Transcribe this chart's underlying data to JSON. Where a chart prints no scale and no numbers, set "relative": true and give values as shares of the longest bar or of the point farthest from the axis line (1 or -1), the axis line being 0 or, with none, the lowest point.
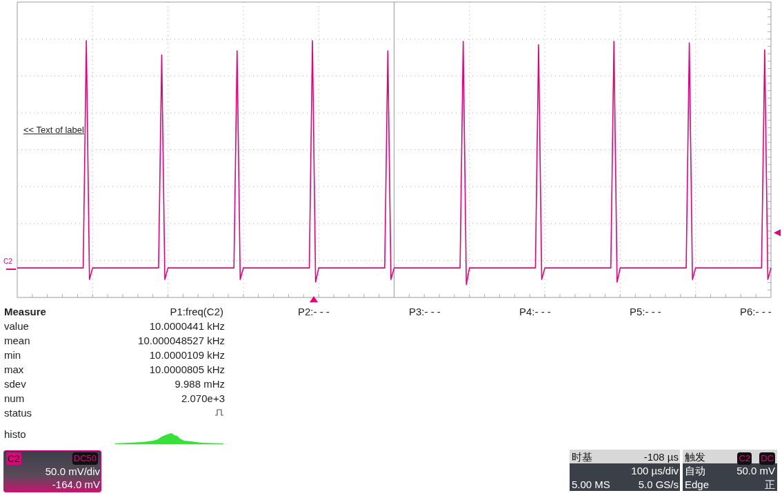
{
  "chart_data": {
    "type": "line",
    "relative": true,
    "grid": true,
    "legend": false,
    "line_style": "solid",
    "categories": [
      null,
      null,
      null,
      null,
      null,
      null,
      null,
      null,
      null,
      null,
      null,
      null,
      null,
      null,
      null,
      null,
      null,
      null,
      null,
      null,
      null,
      null,
      null,
      null,
      null,
      null,
      null,
      null,
      null,
      null,
      null,
      null,
      null,
      null,
      null,
      null,
      null,
      null,
      null,
      null,
      null,
      null,
      null,
      null,
      null,
      null,
      null,
      null,
      null,
      null,
      null,
      null,
      null,
      null,
      null,
      null,
      null,
      null,
      null,
      null,
      null,
      null,
      null,
      null,
      null,
      null,
      null,
      null,
      null,
      null,
      null,
      null,
      null,
      null,
      null,
      null,
      null,
      null,
      null,
      null,
      null,
      null,
      null,
      null,
      null,
      null,
      null,
      null,
      null,
      null,
      null,
      null,
      null,
      null,
      null,
      null,
      null,
      null,
      null,
      null,
      null,
      null,
      null,
      null,
      null,
      null,
      null,
      null,
      null,
      null,
      null,
      null,
      null,
      null,
      null,
      null,
      null,
      null,
      null,
      null,
      null,
      null,
      null,
      null,
      null,
      null,
      null,
      null,
      null,
      null,
      null,
      null,
      null,
      null,
      null,
      null,
      null,
      null,
      null,
      null,
      null,
      null,
      null,
      null,
      null,
      null,
      null,
      null,
      null,
      null,
      null,
      null,
      null,
      null,
      null,
      null,
      null,
      null,
      null,
      null,
      null,
      null,
      null,
      null,
      null,
      null,
      null,
      null,
      null,
      null,
      null,
      null,
      null,
      null,
      null,
      null,
      null,
      null,
      null,
      null,
      null,
      null,
      null,
      null,
      null,
      null,
      null,
      null,
      null,
      null,
      null,
      null,
      null,
      null,
      null,
      null,
      null,
      null,
      null,
      null,
      null,
      null,
      null,
      null,
      null,
      null,
      null,
      null,
      null,
      null,
      null,
      null,
      null,
      null,
      null,
      null,
      null,
      null,
      null,
      null,
      null,
      null,
      null,
      null,
      null,
      null,
      null,
      null,
      null,
      null,
      null,
      null,
      null,
      null,
      null,
      null,
      null,
      null,
      null,
      null,
      null
    ],
    "series": [
      {
        "name": "C2",
        "color": "#e6007e",
        "values": [
          0.115,
          0.115,
          0.115,
          0.115,
          0.115,
          0.115,
          0.115,
          0.115,
          0.115,
          0.115,
          0.115,
          0.115,
          0.115,
          0.115,
          0.115,
          0.115,
          0.115,
          0.115,
          0.115,
          0.115,
          0.115,
          0.115,
          1.0,
          0.07,
          0.115,
          0.115,
          0.115,
          0.115,
          0.115,
          0.115,
          0.115,
          0.115,
          0.115,
          0.115,
          0.115,
          0.115,
          0.115,
          0.115,
          0.115,
          0.115,
          0.115,
          0.115,
          0.115,
          0.115,
          0.115,
          0.115,
          0.944,
          0.07,
          0.115,
          0.115,
          0.115,
          0.115,
          0.115,
          0.115,
          0.115,
          0.115,
          0.115,
          0.115,
          0.115,
          0.115,
          0.115,
          0.115,
          0.115,
          0.115,
          0.115,
          0.115,
          0.115,
          0.115,
          0.115,
          0.115,
          0.96,
          0.07,
          0.115,
          0.115,
          0.115,
          0.115,
          0.115,
          0.115,
          0.115,
          0.115,
          0.115,
          0.115,
          0.115,
          0.115,
          0.115,
          0.115,
          0.115,
          0.115,
          0.115,
          0.115,
          0.115,
          0.115,
          0.115,
          0.115,
          1.0,
          0.06,
          0.115,
          0.115,
          0.115,
          0.115,
          0.115,
          0.115,
          0.115,
          0.115,
          0.115,
          0.115,
          0.115,
          0.115,
          0.115,
          0.115,
          0.115,
          0.115,
          0.115,
          0.115,
          0.115,
          0.115,
          0.115,
          0.115,
          0.96,
          0.07,
          0.115,
          0.115,
          0.115,
          0.115,
          0.115,
          0.115,
          0.115,
          0.115,
          0.115,
          0.115,
          0.115,
          0.115,
          0.115,
          0.115,
          0.115,
          0.115,
          0.115,
          0.115,
          0.115,
          0.115,
          0.115,
          0.115,
          0.997,
          0.05,
          0.115,
          0.115,
          0.115,
          0.115,
          0.115,
          0.115,
          0.115,
          0.115,
          0.115,
          0.115,
          0.115,
          0.115,
          0.115,
          0.115,
          0.115,
          0.115,
          0.115,
          0.115,
          0.115,
          0.115,
          0.115,
          0.115,
          0.984,
          0.07,
          0.115,
          0.115,
          0.115,
          0.115,
          0.115,
          0.115,
          0.115,
          0.115,
          0.115,
          0.115,
          0.115,
          0.115,
          0.115,
          0.115,
          0.115,
          0.115,
          0.115,
          0.115,
          0.115,
          0.115,
          0.115,
          0.115,
          0.997,
          0.06,
          0.115,
          0.115,
          0.115,
          0.115,
          0.115,
          0.115,
          0.115,
          0.115,
          0.115,
          0.115,
          0.115,
          0.115,
          0.115,
          0.115,
          0.115,
          0.115,
          0.115,
          0.115,
          0.115,
          0.115,
          0.115,
          0.115,
          0.991,
          0.07,
          0.115,
          0.115,
          0.115,
          0.115,
          0.115,
          0.115,
          0.115,
          0.115,
          0.115,
          0.115,
          0.115,
          0.115,
          0.115,
          0.115,
          0.115,
          0.115,
          0.115,
          0.115,
          0.115,
          0.115,
          0.115,
          0.115,
          0.964,
          0.07,
          0.115
        ]
      }
    ],
    "annotations": [
      "<< Text of label",
      "Measure",
      "P1:freq(C2)",
      "P2:- - -",
      "P3:- - -",
      "P4:- - -",
      "P5:- - -",
      "P6:- - -",
      "value",
      "10.0000441 kHz",
      "mean",
      "10.000048527 kHz",
      "min",
      "10.0000109 kHz",
      "max",
      "10.0000805 kHz",
      "sdev",
      "9.988 mHz",
      "num",
      "2.070e+3",
      "status",
      "histo",
      "C2",
      "DC50",
      "50.0 mV/div",
      "-164.0 mV",
      "时基",
      "-108 µs",
      "100 µs/div",
      "5.00 MS",
      "5.0 GS/s",
      "触发",
      "C2",
      "DC",
      "自动",
      "50.0 mV",
      "Edge",
      "正"
    ]
  }
}
